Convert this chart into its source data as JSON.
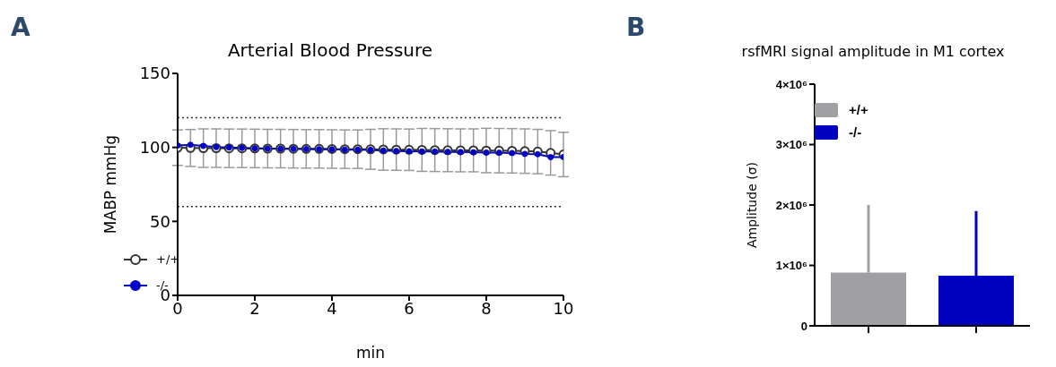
{
  "chart_data": [
    {
      "type": "line",
      "title": "Arterial Blood Pressure",
      "xlabel": "min",
      "ylabel": "MABP mmHg",
      "annotations": [
        "A"
      ],
      "x": [
        0,
        0.333,
        0.667,
        1,
        1.333,
        1.667,
        2,
        2.333,
        2.667,
        3,
        3.333,
        3.667,
        4,
        4.333,
        4.667,
        5,
        5.333,
        5.667,
        6,
        6.333,
        6.667,
        7,
        7.333,
        7.667,
        8,
        8.333,
        8.667,
        9,
        9.333,
        9.667,
        10
      ],
      "series": [
        {
          "name": "+/+",
          "color": "#333333",
          "values": [
            99.8,
            99.6,
            99.5,
            99.5,
            99.4,
            99.4,
            99.3,
            99.2,
            99.2,
            99.1,
            99.0,
            99.0,
            98.9,
            98.8,
            98.8,
            98.7,
            98.6,
            98.5,
            98.4,
            98.3,
            98.2,
            98.1,
            98.0,
            98.0,
            97.9,
            97.8,
            97.7,
            97.5,
            97.2,
            96.3,
            95.2
          ],
          "errors": [
            12,
            12.5,
            13,
            13,
            13,
            13,
            13,
            13,
            13,
            13,
            13,
            13,
            13,
            13,
            13,
            13.5,
            14,
            14,
            14,
            14.5,
            14.5,
            14.5,
            14.5,
            14.5,
            15,
            15,
            15,
            15,
            15,
            15,
            15
          ]
        },
        {
          "name": "-/-",
          "color": "#0000cc",
          "values": [
            101.3,
            101.8,
            101.0,
            100.2,
            99.9,
            99.6,
            99.4,
            99.2,
            99.1,
            99.0,
            98.9,
            98.8,
            98.7,
            98.5,
            98.4,
            98.3,
            97.9,
            97.6,
            97.4,
            97.3,
            97.2,
            97.0,
            96.9,
            96.7,
            96.5,
            96.4,
            96.2,
            95.6,
            95.4,
            93.4,
            93.5
          ]
        }
      ],
      "xlim": [
        0,
        10
      ],
      "xticks": [
        0,
        2,
        4,
        6,
        8,
        10
      ],
      "ylim": [
        0,
        150
      ],
      "yticks": [
        0,
        50,
        100,
        150
      ],
      "ref_lines": [
        {
          "axis": "y",
          "value": 120,
          "line_style": "dotted",
          "color": "#333333"
        },
        {
          "axis": "y",
          "value": 60,
          "line_style": "dotted",
          "color": "#333333"
        }
      ],
      "marker": "circle",
      "line_style": "solid",
      "grid": false,
      "legend": "bottom left"
    },
    {
      "type": "bar",
      "title": "rsfMRI signal amplitude in M1 cortex",
      "ylabel": "Amplitude (σ)",
      "annotations": [
        "B"
      ],
      "categories": [
        null,
        null
      ],
      "stacked": true,
      "series": [
        {
          "name": "+/+",
          "color": "#a0a0a4",
          "values": [
            880000,
            null
          ],
          "errors": [
            [
              880000,
              2000000
            ],
            null
          ]
        },
        {
          "name": "-/-",
          "color": "#0000c0",
          "values": [
            null,
            830000
          ],
          "errors": [
            null,
            [
              830000,
              1900000
            ]
          ]
        }
      ],
      "ylim": [
        0,
        4000000
      ],
      "yticks": [
        0,
        {
          "value": 1000000,
          "label": "1×10⁶"
        },
        {
          "value": 2000000,
          "label": "2×10⁶"
        },
        {
          "value": 3000000,
          "label": "3×10⁶"
        },
        {
          "value": 4000000,
          "label": "4×10⁶"
        }
      ],
      "grid": false,
      "legend": "top left"
    }
  ]
}
